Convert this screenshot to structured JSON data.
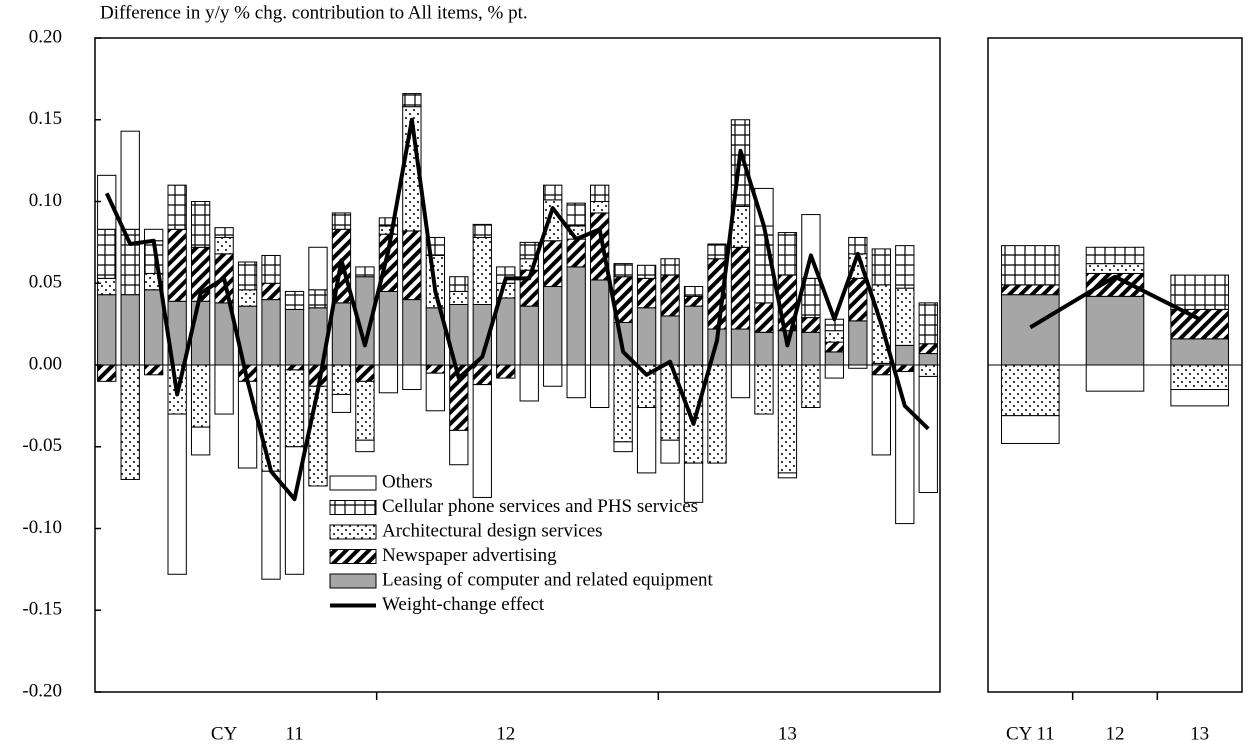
{
  "chart_data": [
    {
      "type": "bar",
      "stacked": true,
      "title": "Difference in y/y % chg. contribution to All items, % pt.",
      "categories": [
        null,
        null,
        null,
        null,
        null,
        "CY",
        null,
        null,
        "11",
        null,
        null,
        null,
        null,
        null,
        null,
        null,
        null,
        "12",
        null,
        null,
        null,
        null,
        null,
        null,
        null,
        null,
        null,
        null,
        null,
        "13",
        null,
        null,
        null,
        null,
        null,
        null
      ],
      "ylim": [
        -0.2,
        0.2
      ],
      "yticks": [
        {
          "value": -0.2,
          "label": "-0.20"
        },
        {
          "value": -0.15,
          "label": "-0.15"
        },
        {
          "value": -0.1,
          "label": "-0.10"
        },
        {
          "value": -0.05,
          "label": "-0.05"
        },
        {
          "value": 0,
          "label": "0.00"
        },
        {
          "value": 0.05,
          "label": "0.05"
        },
        {
          "value": 0.1,
          "label": "0.10"
        },
        {
          "value": 0.15,
          "label": "0.15"
        },
        {
          "value": 0.2,
          "label": "0.20"
        }
      ],
      "legend": "lower center",
      "series": [
        {
          "name": "Leasing of computer and related equipment",
          "color": "#a6a6a6",
          "pattern": "solid",
          "values": [
            0.043,
            0.043,
            0.046,
            0.039,
            0.039,
            0.038,
            0.036,
            0.04,
            0.034,
            0.035,
            0.038,
            0.054,
            0.045,
            0.04,
            0.035,
            0.037,
            0.037,
            0.041,
            0.036,
            0.048,
            0.06,
            0.052,
            0.026,
            0.035,
            0.03,
            0.036,
            0.022,
            0.022,
            0.02,
            0.021,
            0.02,
            0.008,
            0.027,
            0.001,
            0.012,
            0.007
          ]
        },
        {
          "name": "Newspaper advertising",
          "color": "#000000",
          "pattern": "hatch",
          "values": [
            -0.01,
            0,
            -0.006,
            0.044,
            0.033,
            0.03,
            -0.01,
            0.01,
            -0.003,
            -0.013,
            0.045,
            -0.01,
            0.035,
            0.042,
            -0.005,
            -0.04,
            -0.012,
            -0.008,
            0.022,
            0.028,
            0.017,
            0.041,
            0.028,
            0.018,
            0.025,
            0.006,
            0.043,
            0.05,
            0.018,
            0.034,
            0.009,
            0.006,
            0.026,
            -0.006,
            -0.004,
            0.006
          ]
        },
        {
          "name": "Architectural design services",
          "color": "#000000",
          "pattern": "dots",
          "values": [
            0.01,
            -0.07,
            0.01,
            -0.03,
            -0.038,
            0.01,
            0.01,
            -0.065,
            -0.047,
            -0.061,
            -0.018,
            -0.036,
            0.005,
            0.076,
            0.032,
            0.008,
            0.041,
            0.009,
            0.007,
            0.025,
            0.008,
            0.007,
            -0.047,
            -0.026,
            -0.046,
            -0.06,
            -0.06,
            0.025,
            -0.03,
            -0.066,
            -0.026,
            0.007,
            0.015,
            0.048,
            0.035,
            -0.007
          ]
        },
        {
          "name": "Cellular phone services and PHS services",
          "color": "#000000",
          "pattern": "grid",
          "values": [
            0.03,
            0.04,
            0.02,
            0.027,
            0.028,
            0.006,
            0.017,
            0.017,
            0.011,
            0.011,
            0.01,
            0.006,
            0.005,
            0.008,
            0.011,
            0.009,
            0.008,
            0.01,
            0.01,
            0.009,
            0.014,
            0.01,
            0.008,
            0.008,
            0.01,
            0.006,
            0.009,
            0.053,
            0.047,
            0.026,
            0.024,
            0.007,
            0.01,
            0.022,
            0.026,
            0.025
          ]
        },
        {
          "name": "Others",
          "color": "#ffffff",
          "pattern": "solid",
          "values": [
            0.033,
            0.06,
            0.007,
            -0.098,
            -0.017,
            -0.03,
            -0.053,
            -0.066,
            -0.078,
            0.026,
            -0.011,
            -0.007,
            -0.017,
            -0.015,
            -0.023,
            -0.021,
            -0.069,
            0,
            -0.022,
            -0.013,
            -0.02,
            -0.026,
            -0.006,
            -0.04,
            -0.014,
            -0.024,
            0,
            -0.02,
            0.023,
            -0.003,
            0.039,
            -0.008,
            -0.002,
            -0.049,
            -0.093,
            -0.071
          ]
        },
        {
          "name": "Weight-change effect",
          "color": "#000000",
          "type": "line",
          "values": [
            0.105,
            0.074,
            0.076,
            -0.018,
            0.044,
            0.053,
            -0.01,
            -0.065,
            -0.082,
            -0.015,
            0.064,
            0.012,
            0.07,
            0.15,
            0.045,
            -0.008,
            0.005,
            0.053,
            0.053,
            0.096,
            0.077,
            0.083,
            0.008,
            -0.006,
            0.002,
            -0.036,
            0.015,
            0.131,
            0.085,
            0.012,
            0.067,
            0.028,
            0.068,
            0.025,
            -0.025,
            -0.039
          ]
        }
      ]
    },
    {
      "type": "bar",
      "stacked": true,
      "categories": [
        "CY 11",
        "12",
        "13"
      ],
      "ylim": [
        -0.2,
        0.2
      ],
      "series": [
        {
          "name": "Leasing of computer and related equipment",
          "color": "#a6a6a6",
          "pattern": "solid",
          "values": [
            0.043,
            0.042,
            0.016
          ]
        },
        {
          "name": "Newspaper advertising",
          "color": "#000000",
          "pattern": "hatch",
          "values": [
            0.006,
            0.014,
            0.018
          ]
        },
        {
          "name": "Architectural design services",
          "color": "#000000",
          "pattern": "dots",
          "values": [
            -0.031,
            0.006,
            -0.015
          ]
        },
        {
          "name": "Cellular phone services and PHS services",
          "color": "#000000",
          "pattern": "grid",
          "values": [
            0.024,
            0.01,
            0.021
          ]
        },
        {
          "name": "Others",
          "color": "#ffffff",
          "pattern": "solid",
          "values": [
            -0.017,
            -0.016,
            -0.01
          ]
        },
        {
          "name": "Weight-change effect",
          "color": "#000000",
          "type": "line",
          "values": [
            0.023,
            0.054,
            0.028
          ]
        }
      ]
    }
  ]
}
